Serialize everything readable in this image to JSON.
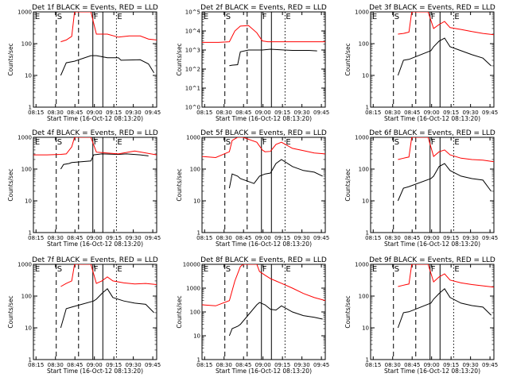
{
  "figure": {
    "background": "#ffffff",
    "events_color": "#000000",
    "lld_color": "#ff0000"
  },
  "chart_data": [
    {
      "type": "line",
      "title": "Det 1f BLACK = Events, RED = LLD",
      "xlabel": "Start Time (16-Oct-12 08:13:20)",
      "ylabel": "Counts/sec",
      "xticks": [
        "08:15",
        "08:30",
        "08:45",
        "09:00",
        "09:15",
        "09:30",
        "09:45"
      ],
      "yticks": [
        "1",
        "10",
        "100",
        "1000"
      ],
      "x_range_min": [
        13,
        58
      ],
      "ylim": [
        1,
        1000
      ],
      "yscale": "log",
      "marker_labels": [
        "E",
        "S",
        "F",
        "E"
      ],
      "series": [
        {
          "name": "Events",
          "color": "#000000",
          "x": [
            23,
            25,
            28,
            34,
            36,
            40,
            44,
            45,
            52,
            55,
            57
          ],
          "y": [
            10,
            25,
            28,
            42,
            42,
            36,
            36,
            30,
            31,
            23,
            12
          ]
        },
        {
          "name": "LLD",
          "color": "#ff0000",
          "x": [
            23,
            25,
            27,
            28,
            34,
            36,
            40,
            44,
            48,
            52,
            55,
            58
          ],
          "y": [
            115,
            130,
            170,
            2000,
            2000,
            200,
            200,
            160,
            175,
            175,
            140,
            130
          ]
        }
      ]
    },
    {
      "type": "line",
      "title": "Det 2f BLACK = Events, RED = LLD",
      "xlabel": "Start Time (16-Oct-12 08:13:20)",
      "ylabel": "Counts/sec",
      "xticks": [
        "08:15",
        "08:30",
        "08:45",
        "09:00",
        "09:15",
        "09:30",
        "09:45"
      ],
      "yticks": [
        "10^0",
        "10^1",
        "10^2",
        "10^3",
        "10^4",
        "10^5"
      ],
      "x_range_min": [
        13,
        58
      ],
      "ylim": [
        1,
        100000
      ],
      "yscale": "log",
      "marker_labels": [
        "E",
        "S",
        "F",
        "E"
      ],
      "series": [
        {
          "name": "Events",
          "color": "#000000",
          "x": [
            23,
            24,
            26,
            27,
            30,
            35,
            38,
            43,
            46,
            52,
            55
          ],
          "y": [
            150,
            160,
            170,
            800,
            1000,
            1000,
            1100,
            1000,
            950,
            950,
            900
          ]
        },
        {
          "name": "LLD",
          "color": "#ff0000",
          "x": [
            13,
            19,
            23,
            25,
            27,
            30,
            33,
            35,
            37,
            44,
            50,
            58
          ],
          "y": [
            2500,
            2500,
            2700,
            10000,
            18000,
            19000,
            8000,
            3000,
            2700,
            2700,
            2700,
            2700
          ]
        }
      ]
    },
    {
      "type": "line",
      "title": "Det 3f BLACK = Events, RED = LLD",
      "xlabel": "Start Time (16-Oct-12 08:13:20)",
      "ylabel": "Counts/sec",
      "xticks": [
        "08:15",
        "08:30",
        "08:45",
        "09:00",
        "09:15",
        "09:30",
        "09:45"
      ],
      "yticks": [
        "1",
        "10",
        "100",
        "1000"
      ],
      "x_range_min": [
        13,
        58
      ],
      "ylim": [
        1,
        1000
      ],
      "yscale": "log",
      "marker_labels": [
        "E",
        "S",
        "F",
        "E"
      ],
      "series": [
        {
          "name": "Events",
          "color": "#000000",
          "x": [
            23,
            25,
            27,
            35,
            36,
            38,
            40,
            42,
            46,
            50,
            54,
            57
          ],
          "y": [
            10,
            30,
            32,
            60,
            80,
            120,
            150,
            80,
            60,
            45,
            35,
            20
          ]
        },
        {
          "name": "LLD",
          "color": "#ff0000",
          "x": [
            23,
            25,
            27,
            28,
            34,
            36,
            38,
            40,
            42,
            46,
            50,
            54,
            58
          ],
          "y": [
            200,
            210,
            230,
            2000,
            2000,
            300,
            400,
            500,
            320,
            280,
            240,
            210,
            190
          ]
        }
      ]
    },
    {
      "type": "line",
      "title": "Det 4f BLACK = Events, RED = LLD",
      "xlabel": "Start Time (16-Oct-12 08:13:20)",
      "ylabel": "Counts/sec",
      "xticks": [
        "08:15",
        "08:30",
        "08:45",
        "09:00",
        "09:15",
        "09:30",
        "09:45"
      ],
      "yticks": [
        "1",
        "10",
        "100",
        "1000"
      ],
      "x_range_min": [
        13,
        58
      ],
      "ylim": [
        1,
        1000
      ],
      "yscale": "log",
      "marker_labels": [
        "E",
        "S",
        "F",
        "E"
      ],
      "series": [
        {
          "name": "Events",
          "color": "#000000",
          "x": [
            23,
            24,
            26,
            27,
            34,
            35,
            38,
            44,
            47,
            52,
            55
          ],
          "y": [
            100,
            140,
            150,
            160,
            180,
            280,
            300,
            290,
            300,
            280,
            260
          ]
        },
        {
          "name": "LLD",
          "color": "#ff0000",
          "x": [
            13,
            18,
            23,
            25,
            27,
            28,
            34,
            36,
            38,
            44,
            50,
            58
          ],
          "y": [
            280,
            280,
            290,
            300,
            500,
            2000,
            2000,
            340,
            330,
            300,
            370,
            280
          ]
        }
      ]
    },
    {
      "type": "line",
      "title": "Det 5f BLACK = Events, RED = LLD",
      "xlabel": "Start Time (16-Oct-12 08:13:20)",
      "ylabel": "Counts/sec",
      "xticks": [
        "08:15",
        "08:30",
        "08:45",
        "09:00",
        "09:15",
        "09:30",
        "09:45"
      ],
      "yticks": [
        "1",
        "10",
        "100",
        "1000"
      ],
      "x_range_min": [
        13,
        58
      ],
      "ylim": [
        1,
        1000
      ],
      "yscale": "log",
      "marker_labels": [
        "S",
        "F",
        "E"
      ],
      "series": [
        {
          "name": "Events",
          "color": "#000000",
          "x": [
            23,
            24,
            26,
            27,
            32,
            34,
            36,
            38,
            40,
            42,
            46,
            50,
            54,
            57
          ],
          "y": [
            25,
            70,
            60,
            50,
            35,
            60,
            70,
            75,
            150,
            200,
            120,
            90,
            80,
            60
          ]
        },
        {
          "name": "LLD",
          "color": "#ff0000",
          "x": [
            13,
            18,
            23,
            24,
            26,
            27,
            28,
            33,
            35,
            36,
            38,
            40,
            42,
            46,
            50,
            54,
            58
          ],
          "y": [
            250,
            230,
            350,
            800,
            1500,
            2000,
            1000,
            700,
            400,
            350,
            360,
            600,
            700,
            450,
            380,
            320,
            300
          ]
        }
      ]
    },
    {
      "type": "line",
      "title": "Det 6f BLACK = Events, RED = LLD",
      "xlabel": "Start Time (16-Oct-12 08:13:20)",
      "ylabel": "Counts/sec",
      "xticks": [
        "08:15",
        "08:30",
        "08:45",
        "09:00",
        "09:15",
        "09:30",
        "09:45"
      ],
      "yticks": [
        "1",
        "10",
        "100",
        "1000"
      ],
      "x_range_min": [
        13,
        58
      ],
      "ylim": [
        1,
        1000
      ],
      "yscale": "log",
      "marker_labels": [
        "S",
        "F",
        "E"
      ],
      "series": [
        {
          "name": "Events",
          "color": "#000000",
          "x": [
            23,
            25,
            27,
            35,
            36,
            38,
            40,
            42,
            46,
            50,
            54,
            57
          ],
          "y": [
            10,
            25,
            28,
            50,
            60,
            120,
            150,
            90,
            60,
            50,
            45,
            20
          ]
        },
        {
          "name": "LLD",
          "color": "#ff0000",
          "x": [
            23,
            25,
            27,
            28,
            34,
            36,
            38,
            40,
            42,
            46,
            50,
            54,
            58
          ],
          "y": [
            200,
            220,
            240,
            2000,
            2000,
            250,
            350,
            400,
            280,
            220,
            200,
            190,
            170
          ]
        }
      ]
    },
    {
      "type": "line",
      "title": "Det 7f BLACK = Events, RED = LLD",
      "xlabel": "Start Time (16-Oct-12 08:13:20)",
      "ylabel": "Counts/sec",
      "xticks": [
        "08:15",
        "08:30",
        "08:45",
        "09:00",
        "09:15",
        "09:30",
        "09:45"
      ],
      "yticks": [
        "1",
        "10",
        "100",
        "1000"
      ],
      "x_range_min": [
        13,
        58
      ],
      "ylim": [
        1,
        1000
      ],
      "yscale": "log",
      "marker_labels": [
        "E",
        "S",
        "F",
        "E"
      ],
      "series": [
        {
          "name": "Events",
          "color": "#000000",
          "x": [
            23,
            25,
            27,
            35,
            36,
            38,
            40,
            42,
            46,
            50,
            54,
            57
          ],
          "y": [
            10,
            40,
            45,
            70,
            80,
            120,
            170,
            90,
            70,
            60,
            55,
            30
          ]
        },
        {
          "name": "LLD",
          "color": "#ff0000",
          "x": [
            23,
            25,
            27,
            28,
            34,
            36,
            38,
            40,
            42,
            46,
            50,
            54,
            58
          ],
          "y": [
            200,
            250,
            300,
            2000,
            2000,
            250,
            300,
            400,
            300,
            260,
            240,
            250,
            230
          ]
        }
      ]
    },
    {
      "type": "line",
      "title": "Det 8f BLACK = Events, RED = LLD",
      "xlabel": "Start Time (16-Oct-12 08:13:20)",
      "ylabel": "Counts/sec",
      "xticks": [
        "08:15",
        "08:30",
        "08:45",
        "09:00",
        "09:15",
        "09:30",
        "09:45"
      ],
      "yticks": [
        "1",
        "10",
        "100",
        "1000",
        "10000"
      ],
      "x_range_min": [
        13,
        58
      ],
      "ylim": [
        1,
        10000
      ],
      "yscale": "log",
      "marker_labels": [
        "E",
        "S",
        "F",
        "E"
      ],
      "series": [
        {
          "name": "Events",
          "color": "#000000",
          "x": [
            23,
            24,
            26,
            27,
            33,
            34,
            36,
            38,
            40,
            42,
            46,
            50,
            54,
            57
          ],
          "y": [
            10,
            20,
            25,
            30,
            200,
            250,
            200,
            130,
            120,
            180,
            100,
            70,
            60,
            50
          ]
        },
        {
          "name": "LLD",
          "color": "#ff0000",
          "x": [
            13,
            18,
            23,
            25,
            27,
            28,
            33,
            34,
            36,
            38,
            40,
            42,
            46,
            50,
            54,
            58
          ],
          "y": [
            200,
            180,
            300,
            2000,
            8000,
            20000,
            20000,
            5000,
            3500,
            2500,
            2000,
            1600,
            1000,
            600,
            400,
            300
          ]
        }
      ]
    },
    {
      "type": "line",
      "title": "Det 9f BLACK = Events, RED = LLD",
      "xlabel": "Start Time (16-Oct-12 08:13:20)",
      "ylabel": "Counts/sec",
      "xticks": [
        "08:15",
        "08:30",
        "08:45",
        "09:00",
        "09:15",
        "09:30",
        "09:45"
      ],
      "yticks": [
        "1",
        "10",
        "100",
        "1000"
      ],
      "x_range_min": [
        13,
        58
      ],
      "ylim": [
        1,
        1000
      ],
      "yscale": "log",
      "marker_labels": [
        "E",
        "S",
        "F",
        "E"
      ],
      "series": [
        {
          "name": "Events",
          "color": "#000000",
          "x": [
            23,
            25,
            27,
            35,
            36,
            38,
            40,
            42,
            46,
            50,
            54,
            57
          ],
          "y": [
            10,
            30,
            32,
            60,
            80,
            120,
            170,
            90,
            60,
            50,
            45,
            25
          ]
        },
        {
          "name": "LLD",
          "color": "#ff0000",
          "x": [
            23,
            25,
            27,
            28,
            34,
            36,
            38,
            40,
            42,
            46,
            50,
            54,
            58
          ],
          "y": [
            200,
            220,
            240,
            2000,
            2000,
            280,
            400,
            500,
            320,
            260,
            230,
            210,
            190
          ]
        }
      ]
    }
  ]
}
